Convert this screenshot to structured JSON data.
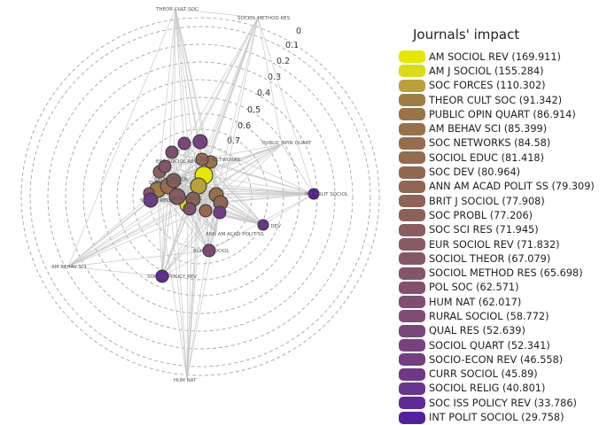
{
  "chart_data": {
    "type": "radial-network",
    "legend_title": "Journals' impact",
    "ring_labels": [
      "0",
      "0.1",
      "0.2",
      "0.3",
      "0.4",
      "0.5",
      "0.6",
      "0.7"
    ],
    "journals": [
      {
        "name": "AM SOCIOL REV",
        "impact": "169.911",
        "color": "#e6e600"
      },
      {
        "name": "AM J SOCIOL",
        "impact": "155.284",
        "color": "#dbdb1a"
      },
      {
        "name": "SOC FORCES",
        "impact": "110.302",
        "color": "#b8a03a"
      },
      {
        "name": "THEOR CULT SOC",
        "impact": "91.342",
        "color": "#9e7d45"
      },
      {
        "name": "PUBLIC OPIN QUART",
        "impact": "86.914",
        "color": "#9b7348"
      },
      {
        "name": "AM BEHAV SCI",
        "impact": "85.399",
        "color": "#98704b"
      },
      {
        "name": "SOC NETWORKS",
        "impact": "84.58",
        "color": "#966e4d"
      },
      {
        "name": "SOCIOL EDUC",
        "impact": "81.418",
        "color": "#946a50"
      },
      {
        "name": "SOC DEV",
        "impact": "80.964",
        "color": "#926852"
      },
      {
        "name": "ANN AM ACAD POLIT SS",
        "impact": "79.309",
        "color": "#906655"
      },
      {
        "name": "BRIT J SOCIOL",
        "impact": "77.908",
        "color": "#8e6358"
      },
      {
        "name": "SOC PROBL",
        "impact": "77.206",
        "color": "#8c615a"
      },
      {
        "name": "SOC SCI RES",
        "impact": "71.945",
        "color": "#8a5e5e"
      },
      {
        "name": "EUR SOCIOL REV",
        "impact": "71.832",
        "color": "#885b62"
      },
      {
        "name": "SOCIOL THEOR",
        "impact": "67.079",
        "color": "#865866"
      },
      {
        "name": "SOCIOL METHOD RES",
        "impact": "65.698",
        "color": "#845569"
      },
      {
        "name": "POL SOC",
        "impact": "62.571",
        "color": "#82516d"
      },
      {
        "name": "HUM NAT",
        "impact": "62.017",
        "color": "#804e71"
      },
      {
        "name": "RURAL SOCIOL",
        "impact": "58.772",
        "color": "#7e4b75"
      },
      {
        "name": "QUAL RES",
        "impact": "52.639",
        "color": "#7a4779"
      },
      {
        "name": "SOCIOL QUART",
        "impact": "52.341",
        "color": "#77437d"
      },
      {
        "name": "SOCIO-ECON REV",
        "impact": "46.558",
        "color": "#733f82"
      },
      {
        "name": "CURR SOCIOL",
        "impact": "45.89",
        "color": "#6e3a87"
      },
      {
        "name": "SOCIOL RELIG",
        "impact": "40.801",
        "color": "#69358c"
      },
      {
        "name": "SOC ISS POLICY REV",
        "impact": "33.786",
        "color": "#5f2a95"
      },
      {
        "name": "INT POLIT SOCIOL",
        "impact": "29.758",
        "color": "#55209c"
      }
    ],
    "outer_labels": [
      "THEOR CULT SOC",
      "SOCIOL METHOD RES",
      "PUBLIC OPIN QUART",
      "INT POLIT SOCIOL",
      "SOC ISS POLICY REV",
      "HUM NAT",
      "AM BEHAV SCI",
      "RURAL SOCIOL",
      "ANN AM ACAD POLIT SS",
      "SOC DEV",
      "SOC NETWORKS",
      "SOCIOL RELIG",
      "CURR SOCIOL",
      "SOCIOL EDUC",
      "BRIT J SOCIOL",
      "EUR SOCIOL REV"
    ]
  }
}
